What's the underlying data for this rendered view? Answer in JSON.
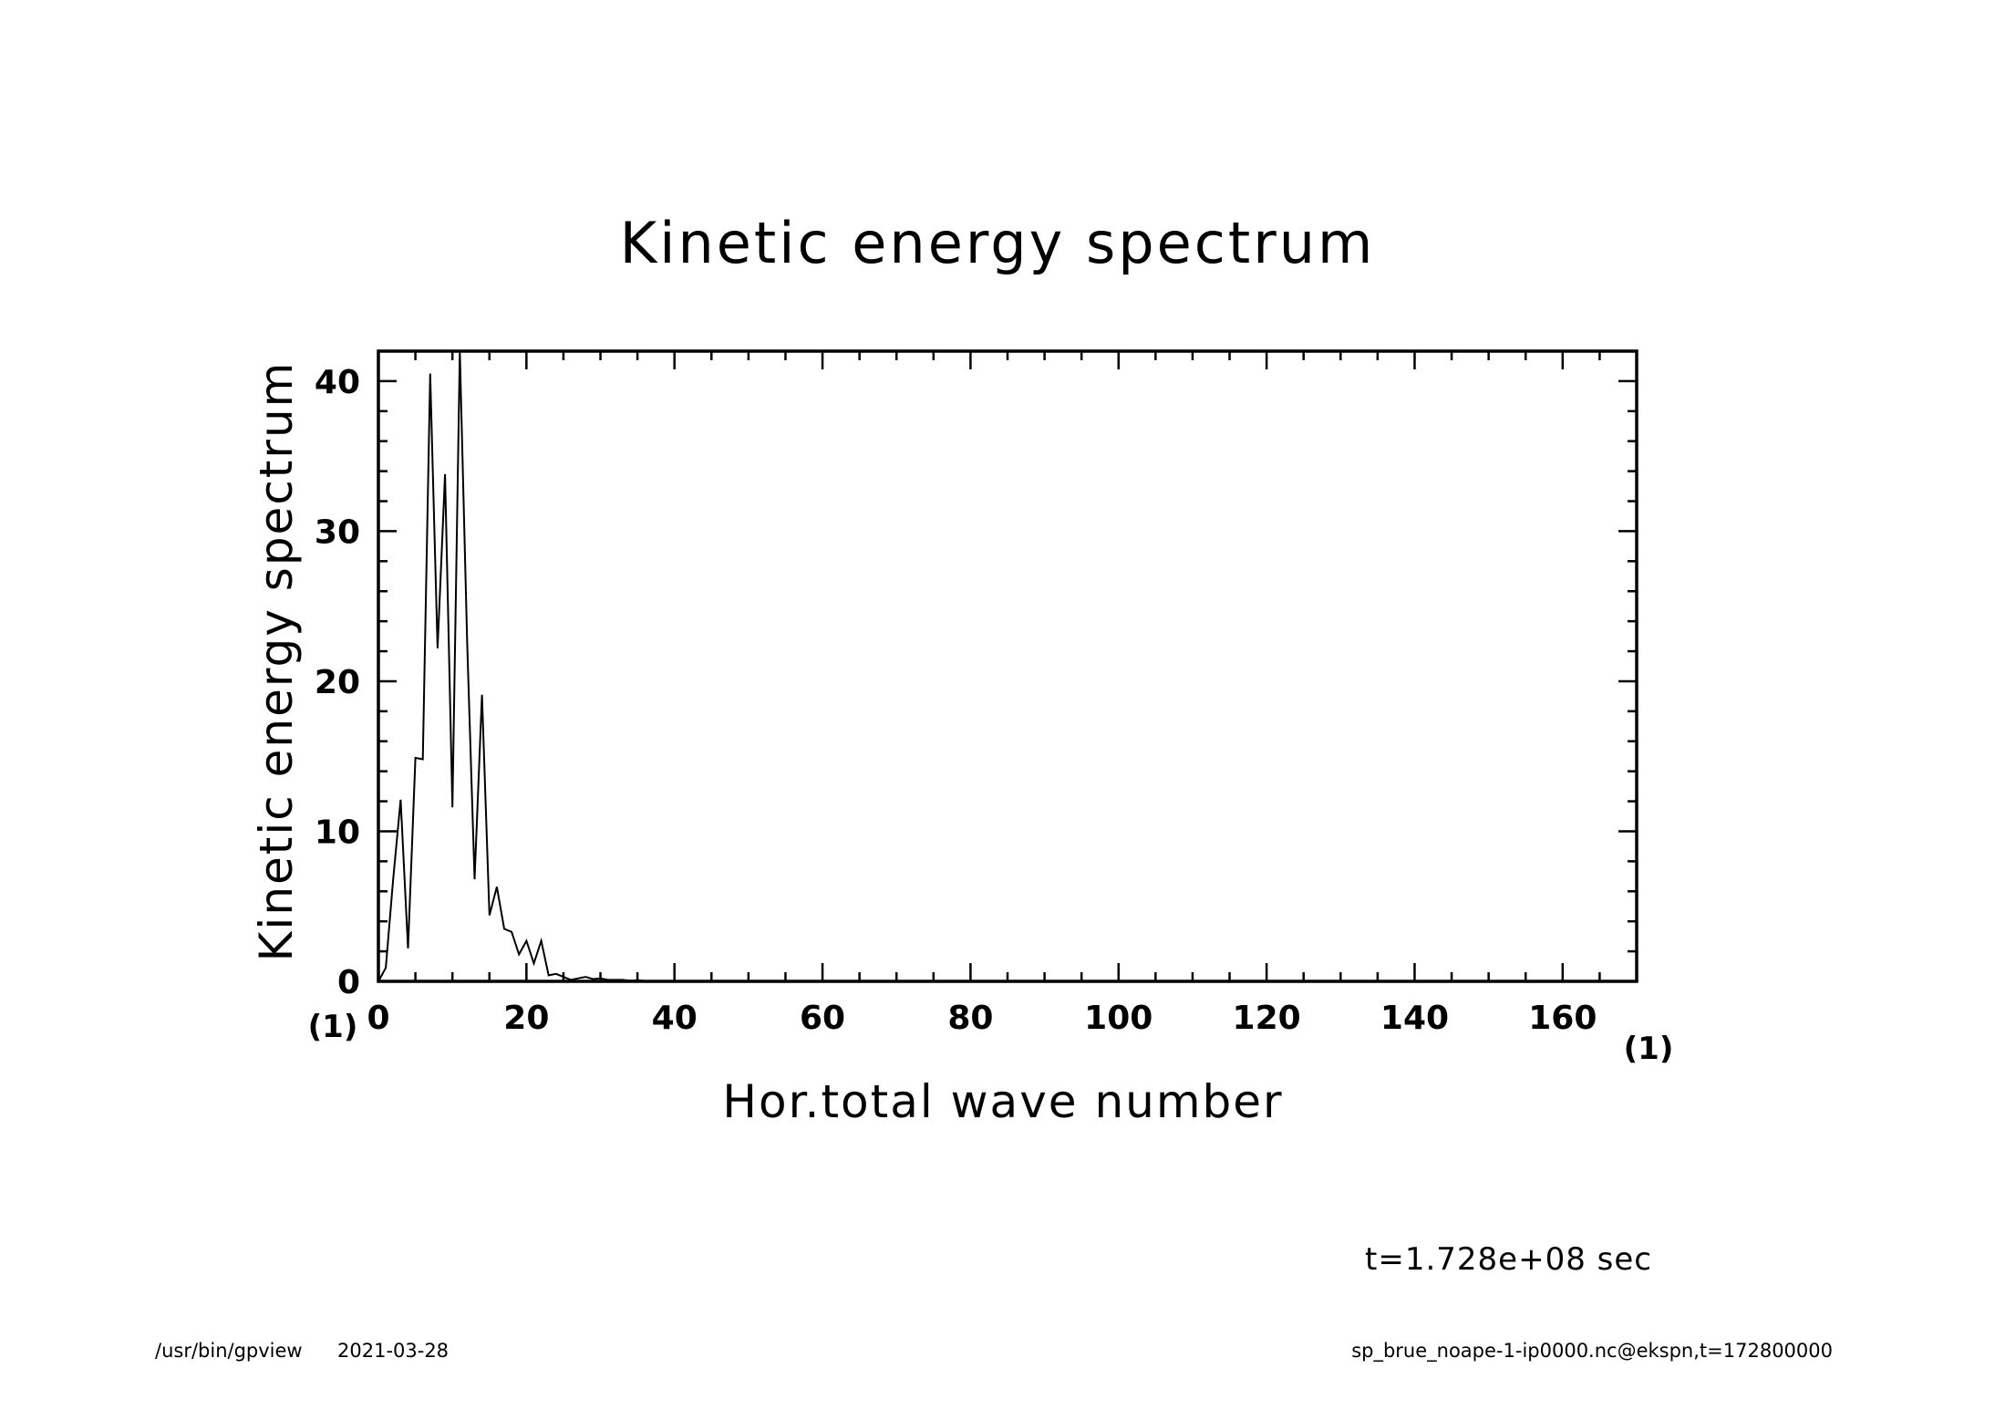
{
  "chart_data": {
    "type": "line",
    "title": "Kinetic energy spectrum",
    "xlabel": "Hor.total wave number",
    "ylabel": "Kinetic energy spectrum",
    "x_unit": "(1)",
    "y_unit": "(1)",
    "xlim": [
      0,
      170
    ],
    "ylim": [
      0,
      42
    ],
    "x_ticks": [
      0,
      20,
      40,
      60,
      80,
      100,
      120,
      140,
      160
    ],
    "x_tick_labels": [
      "0",
      "20",
      "40",
      "60",
      "80",
      "100",
      "120",
      "140",
      "160"
    ],
    "y_ticks": [
      0,
      10,
      20,
      30,
      40
    ],
    "y_tick_labels": [
      "0",
      "10",
      "20",
      "30",
      "40"
    ],
    "grid": false,
    "series": [
      {
        "name": "Kinetic energy spectrum",
        "x": [
          0,
          1,
          2,
          3,
          4,
          5,
          6,
          7,
          8,
          9,
          10,
          11,
          12,
          13,
          14,
          15,
          16,
          17,
          18,
          19,
          20,
          21,
          22,
          23,
          24,
          25,
          26,
          27,
          28,
          29,
          30,
          31,
          32,
          33,
          34,
          35,
          36,
          37,
          38,
          39,
          40,
          45,
          50,
          60,
          80,
          100,
          120,
          140,
          160,
          170
        ],
        "values": [
          0,
          0.9,
          6.8,
          12.1,
          2.2,
          14.9,
          14.8,
          40.5,
          22.2,
          33.8,
          11.6,
          42.0,
          22.5,
          6.8,
          19.1,
          4.4,
          6.3,
          3.5,
          3.3,
          1.8,
          2.7,
          1.2,
          2.7,
          0.4,
          0.5,
          0.3,
          0.1,
          0.2,
          0.3,
          0.15,
          0.2,
          0.1,
          0.1,
          0.1,
          0.05,
          0.08,
          0.03,
          0.02,
          0.01,
          0.01,
          0,
          0,
          0,
          0,
          0,
          0,
          0,
          0,
          0,
          0
        ]
      }
    ]
  },
  "annotations": {
    "time": "t=1.728e+08 sec",
    "program_path": "/usr/bin/gpview",
    "date": "2021-03-28",
    "source": "sp_brue_noape-1-ip0000.nc@ekspn,t=172800000"
  }
}
